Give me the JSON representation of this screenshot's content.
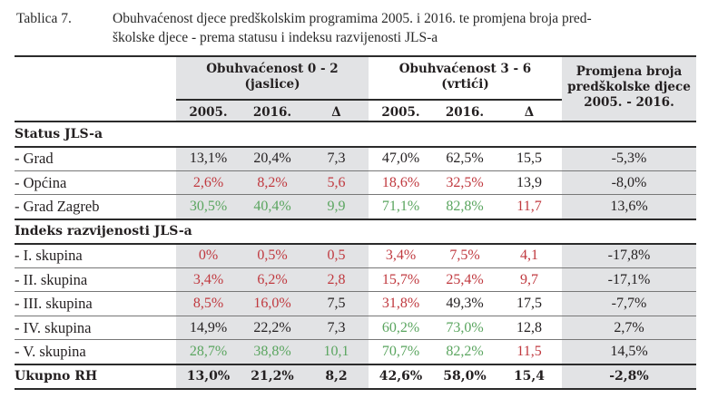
{
  "caption": {
    "label": "Tablica 7.",
    "line1": "Obuhvaćenost djece predškolskim programima 2005. i 2016. te promjena broja pred-",
    "line2": "školske djece - prema statusu i indeksu razvijenosti JLS-a"
  },
  "colors": {
    "red": "#c0393f",
    "green": "#5aa55f",
    "gray_bg": "#e2e3e5"
  },
  "header": {
    "group1_line1": "Obuhvaćenost 0 - 2",
    "group1_line2": "(jaslice)",
    "group2_line1": "Obuhvaćenost 3 - 6",
    "group2_line2": "(vrtići)",
    "change_line1": "Promjena broja",
    "change_line2": "predškolske djece",
    "change_line3": "2005. - 2016.",
    "cols": [
      "2005.",
      "2016.",
      "Δ",
      "2005.",
      "2016.",
      "Δ"
    ]
  },
  "sections": [
    {
      "title": "Status JLS-a",
      "rows": [
        {
          "label": "- Grad",
          "values": [
            "13,1%",
            "20,4%",
            "7,3",
            "47,0%",
            "62,5%",
            "15,5",
            "-5,3%"
          ],
          "colors": [
            "dark",
            "dark",
            "dark",
            "dark",
            "dark",
            "dark",
            "dark"
          ]
        },
        {
          "label": "- Općina",
          "values": [
            "2,6%",
            "8,2%",
            "5,6",
            "18,6%",
            "32,5%",
            "13,9",
            "-8,0%"
          ],
          "colors": [
            "red",
            "red",
            "red",
            "red",
            "red",
            "dark",
            "dark"
          ]
        },
        {
          "label": "- Grad Zagreb",
          "values": [
            "30,5%",
            "40,4%",
            "9,9",
            "71,1%",
            "82,8%",
            "11,7",
            "13,6%"
          ],
          "colors": [
            "green",
            "green",
            "green",
            "green",
            "green",
            "red",
            "dark"
          ]
        }
      ]
    },
    {
      "title": "Indeks razvijenosti JLS-a",
      "rows": [
        {
          "label": "- I. skupina",
          "values": [
            "0%",
            "0,5%",
            "0,5",
            "3,4%",
            "7,5%",
            "4,1",
            "-17,8%"
          ],
          "colors": [
            "red",
            "red",
            "red",
            "red",
            "red",
            "red",
            "dark"
          ]
        },
        {
          "label": "- II. skupina",
          "values": [
            "3,4%",
            "6,2%",
            "2,8",
            "15,7%",
            "25,4%",
            "9,7",
            "-17,1%"
          ],
          "colors": [
            "red",
            "red",
            "red",
            "red",
            "red",
            "red",
            "dark"
          ]
        },
        {
          "label": "- III. skupina",
          "values": [
            "8,5%",
            "16,0%",
            "7,5",
            "31,8%",
            "49,3%",
            "17,5",
            "-7,7%"
          ],
          "colors": [
            "red",
            "red",
            "dark",
            "red",
            "dark",
            "dark",
            "dark"
          ]
        },
        {
          "label": "- IV. skupina",
          "values": [
            "14,9%",
            "22,2%",
            "7,3",
            "60,2%",
            "73,0%",
            "12,8",
            "2,7%"
          ],
          "colors": [
            "dark",
            "dark",
            "dark",
            "green",
            "green",
            "dark",
            "dark"
          ]
        },
        {
          "label": "- V. skupina",
          "values": [
            "28,7%",
            "38,8%",
            "10,1",
            "70,7%",
            "82,2%",
            "11,5",
            "14,5%"
          ],
          "colors": [
            "green",
            "green",
            "green",
            "green",
            "green",
            "red",
            "dark"
          ]
        }
      ]
    }
  ],
  "total": {
    "label": "Ukupno RH",
    "values": [
      "13,0%",
      "21,2%",
      "8,2",
      "42,6%",
      "58,0%",
      "15,4",
      "-2,8%"
    ]
  }
}
